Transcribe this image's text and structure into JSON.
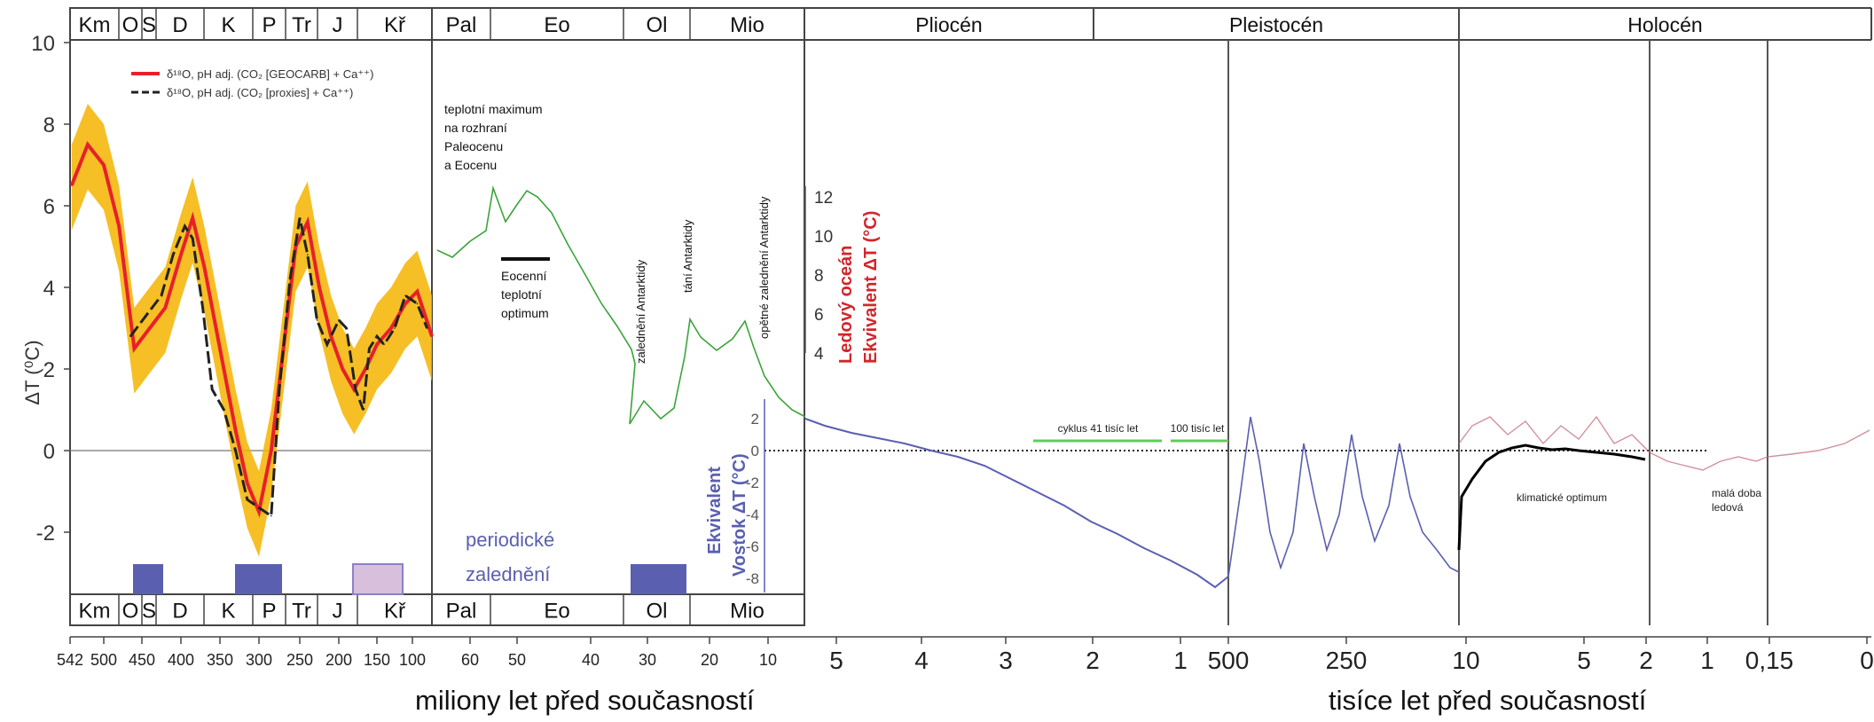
{
  "chart_data": {
    "type": "line",
    "y_axis_label": "ΔT (⁰C)",
    "y_ticks": [
      10,
      8,
      6,
      4,
      2,
      0,
      -2
    ],
    "ylim": [
      -3.5,
      10
    ],
    "periods_paleozoic": [
      "Km",
      "O",
      "S",
      "D",
      "K",
      "P",
      "Tr",
      "J",
      "Kř"
    ],
    "periods_cenozoic": [
      "Pal",
      "Eo",
      "Ol",
      "Mio"
    ],
    "epochs": [
      "Pliocén",
      "Pleistocén",
      "Holocén"
    ],
    "legend": [
      {
        "label": "δ¹⁸O, pH adj. (CO₂ [GEOCARB] + Ca⁺⁺)",
        "color": "#e8202a",
        "style": "solid"
      },
      {
        "label": "δ¹⁸O, pH adj. (CO₂ [proxies] + Ca⁺⁺)",
        "color": "#222222",
        "style": "dashed"
      }
    ],
    "series": [
      {
        "name": "δ¹⁸O, pH adj. (CO₂ [GEOCARB] + Ca⁺⁺)",
        "x_unit": "milionů let",
        "x": [
          540,
          520,
          500,
          480,
          460,
          440,
          420,
          400,
          385,
          370,
          350,
          330,
          315,
          300,
          285,
          270,
          255,
          240,
          225,
          210,
          195,
          180,
          165,
          150,
          130,
          110,
          95,
          80
        ],
        "values": [
          6.5,
          7.5,
          7.0,
          5.5,
          2.5,
          3.0,
          3.5,
          4.8,
          5.7,
          4.5,
          2.5,
          0.5,
          -0.8,
          -1.5,
          0.0,
          2.5,
          5.0,
          5.6,
          4.0,
          2.8,
          2.0,
          1.5,
          2.0,
          2.6,
          3.0,
          3.6,
          3.9,
          2.8
        ]
      },
      {
        "name": "δ¹⁸O, pH adj. (CO₂ [proxies] + Ca⁺⁺)",
        "x_unit": "milionů let",
        "x": [
          465,
          445,
          425,
          410,
          395,
          385,
          372,
          360,
          345,
          330,
          315,
          300,
          285,
          275,
          262,
          250,
          240,
          228,
          215,
          200,
          190,
          178,
          168,
          160,
          150,
          140,
          125,
          110,
          95,
          85
        ],
        "values": [
          2.8,
          3.3,
          3.8,
          4.8,
          5.5,
          5.2,
          3.5,
          1.5,
          1.0,
          0.0,
          -1.2,
          -1.4,
          -1.6,
          1.5,
          4.2,
          5.7,
          4.8,
          3.2,
          2.6,
          3.2,
          3.0,
          1.5,
          1.0,
          2.5,
          2.8,
          2.6,
          3.0,
          3.8,
          3.6,
          3.0
        ]
      }
    ],
    "uncertainty_band_color": "#f5b400",
    "annotations_cenozoic": [
      "teplotní maximum na rozhraní Paleocenu a Eocenu",
      "Eocenní teplotní optimum",
      "zalednění Antarktidy",
      "tání Antarktidy",
      "opětné zalednění Antarktidy",
      "periodické zalednění"
    ],
    "annotation_lines": {
      "pal_eo_max": [
        "teplotní maximum",
        "na rozhraní",
        "Paleocenu",
        "a Eocenu"
      ],
      "eo_optimum": [
        "Eocenní",
        "teplotní",
        "optimum"
      ],
      "periodic": [
        "periodické",
        "zalednění"
      ]
    },
    "ocean_axis": {
      "label_line1": "Ledový oceán",
      "label_line2": "Ekvivalent ΔT (°C)",
      "ticks": [
        12,
        10,
        8,
        6,
        4
      ],
      "color": "#d2262c"
    },
    "vostok_axis": {
      "label_line1": "Ekvivalent",
      "label_line2": "Vostok ΔT (°C)",
      "ticks": [
        2,
        0,
        -2,
        -4,
        -6,
        -8
      ],
      "color": "#5a5fb0"
    },
    "cycle_labels": [
      "cyklus 41 tisíc let",
      "100 tisíc let"
    ],
    "holocene_labels": [
      "klimatické optimum",
      "malá doba ledová"
    ],
    "little_ice_age_lines": [
      "malá doba",
      "ledová"
    ],
    "x_ticks_ma": [
      "542",
      "500",
      "450",
      "400",
      "350",
      "300",
      "250",
      "200",
      "150",
      "100",
      "60",
      "50",
      "40",
      "30",
      "20",
      "10",
      "5",
      "4",
      "3",
      "2",
      "1"
    ],
    "x_ticks_ka": [
      "500",
      "250",
      "10",
      "5",
      "2",
      "1",
      "0,15",
      "0"
    ],
    "x_title_left": "miliony let před současností",
    "x_title_right": "tisíce let před současností"
  }
}
